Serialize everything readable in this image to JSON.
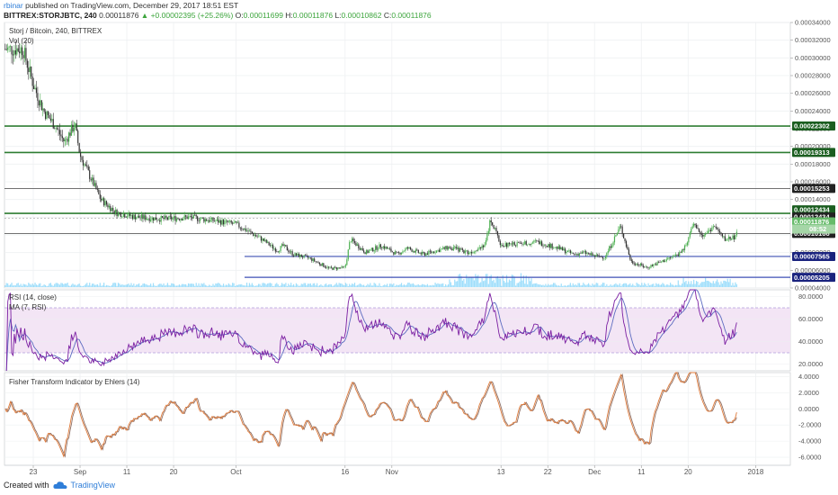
{
  "header": {
    "author": "rbinar",
    "published": "published on TradingView.com, December 29, 2017 18:51 EST",
    "symbol": "BITTREX:STORJBTC, 240",
    "price": "0.00011876",
    "change": "+0.00002395 (+25.26%)",
    "o_label": "O:",
    "o": "0.00011699",
    "h_label": "H:",
    "h": "0.00011876",
    "l_label": "L:",
    "l": "0.00010862",
    "c_label": "C:",
    "c": "0.00011876"
  },
  "footer": {
    "created": "Created with",
    "brand": "TradingView"
  },
  "colors": {
    "green_line": "#2e7d32",
    "blue_line": "#3f51b5",
    "candle_up": "#4caf50",
    "candle_dn": "#333333",
    "rsi_band": "#f3e5f5",
    "rsi_line": "#7b1fa2",
    "ma_line": "#5c6bc0",
    "fisher_1": "#e07b3a",
    "fisher_2": "#8d6e63",
    "volume": "#4fc3f7"
  },
  "chart_data": [
    {
      "type": "line",
      "panel": "price",
      "title": "Storj / Bitcoin, 240, BITTREX",
      "subtitle": "Vol (20)",
      "ylim": [
        4e-05,
        0.00034
      ],
      "y_ticks": [
        "0.00034000",
        "0.00032000",
        "0.00030000",
        "0.00028000",
        "0.00026000",
        "0.00024000",
        "0.00022000",
        "0.00020000",
        "0.00018000",
        "0.00016000",
        "0.00014000",
        "0.00012000",
        "0.00010000",
        "0.00008000",
        "0.00006000",
        "0.00004000"
      ],
      "y_tick_values": [
        0.00034,
        0.00032,
        0.0003,
        0.00028,
        0.00026,
        0.00024,
        0.00022,
        0.0002,
        0.00018,
        0.00016,
        0.00014,
        0.00012,
        0.0001,
        8e-05,
        6e-05,
        4e-05
      ],
      "x_ticks": [
        "23",
        "Sep",
        "11",
        "20",
        "Oct",
        "16",
        "Nov",
        "13",
        "22",
        "Dec",
        "11",
        "20",
        "2018"
      ],
      "x_tick_days": [
        0,
        9,
        18,
        27,
        39,
        60,
        69,
        90,
        99,
        108,
        117,
        126,
        139
      ],
      "countdown": "08:52",
      "horizontal_levels": [
        {
          "value": 0.00022302,
          "label": "0.00022302",
          "color": "green"
        },
        {
          "value": 0.00019313,
          "label": "0.00019313",
          "color": "green"
        },
        {
          "value": 0.00015253,
          "label": "0.00015253",
          "color": "black"
        },
        {
          "value": 0.00012434,
          "label": "0.00012434",
          "color": "green"
        },
        {
          "value": 0.00012434,
          "label": "0.00012434",
          "color": "black"
        },
        {
          "value": 0.00011876,
          "label": "0.00011876",
          "color": "last"
        },
        {
          "value": 0.00010166,
          "label": "0.00010166",
          "color": "black"
        },
        {
          "value": 7.565e-05,
          "label": "0.00007565",
          "color": "blue"
        },
        {
          "value": 5.205e-05,
          "label": "0.00005205",
          "color": "blue"
        }
      ],
      "price_anchors_day": [
        -2,
        0,
        2,
        4,
        6,
        8,
        9,
        11,
        13,
        16,
        20,
        25,
        30,
        36,
        39,
        44,
        47,
        48,
        50,
        53,
        57,
        60,
        61,
        64,
        67,
        70,
        72,
        75,
        80,
        84,
        87,
        88,
        90,
        93,
        97,
        101,
        104,
        106,
        108,
        110,
        113,
        115,
        118,
        121,
        124,
        125,
        127,
        129,
        131,
        133,
        135,
        136
      ],
      "price_anchors_value": [
        0.00031,
        0.00027,
        0.00024,
        0.000225,
        0.000205,
        0.000225,
        0.00019,
        0.000165,
        0.00014,
        0.000125,
        0.00012,
        0.000118,
        0.00012,
        0.000115,
        0.000112,
        9.5e-05,
        8.2e-05,
        8.8e-05,
        7.8e-05,
        7.4e-05,
        6.2e-05,
        6.3e-05,
        9.5e-05,
        8e-05,
        8.8e-05,
        7.8e-05,
        8.5e-05,
        7.8e-05,
        8.6e-05,
        8e-05,
        9e-05,
        0.000118,
        8.8e-05,
        9e-05,
        9.2e-05,
        8.5e-05,
        7.8e-05,
        8e-05,
        7.6e-05,
        7.5e-05,
        0.00011,
        7e-05,
        6.3e-05,
        7e-05,
        7.8e-05,
        8.2e-05,
        0.00011,
        0.0001,
        0.00011,
        9.5e-05,
        9.8e-05,
        0.000118
      ]
    },
    {
      "type": "line",
      "panel": "rsi",
      "title": "RSI (14, close)",
      "subtitle": "MA (7, RSI)",
      "ylim": [
        14,
        86
      ],
      "y_ticks": [
        "80.0000",
        "60.0000",
        "40.0000",
        "20.0000"
      ],
      "y_tick_values": [
        80,
        60,
        40,
        20
      ],
      "band": [
        30,
        70
      ]
    },
    {
      "type": "line",
      "panel": "fisher",
      "title": "Fisher Transform Indicator by Ehlers (14)",
      "ylim": [
        -7,
        4.5
      ],
      "y_ticks": [
        "4.0000",
        "2.0000",
        "0.0000",
        "-2.0000",
        "-4.0000",
        "-6.0000"
      ],
      "y_tick_values": [
        4,
        2,
        0,
        -2,
        -4,
        -6
      ]
    }
  ]
}
